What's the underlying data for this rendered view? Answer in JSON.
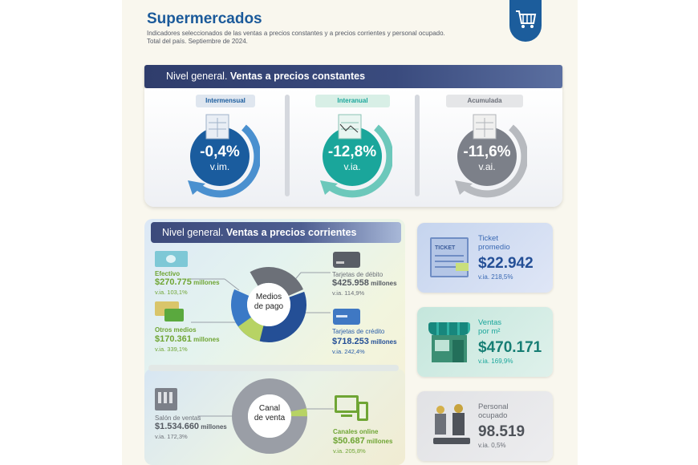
{
  "header": {
    "title": "Supermercados",
    "subtitle_line1": "Indicadores seleccionados de las ventas a precios constantes y a precios corrientes y personal ocupado.",
    "subtitle_line2": "Total del país. Septiembre de 2024.",
    "logo_icon": "shopping-cart-icon"
  },
  "constantes": {
    "title_bold": "Nivel general.",
    "title_rest": " Ventas a precios constantes",
    "gauges": [
      {
        "tag": "Intermensual",
        "value": "-0,4%",
        "unit": "v.im.",
        "color": "#1a5c9e"
      },
      {
        "tag": "Interanual",
        "value": "-12,8%",
        "unit": "v.ia.",
        "color": "#1aa69b"
      },
      {
        "tag": "Acumulada",
        "value": "-11,6%",
        "unit": "v.ai.",
        "color": "#7c8089"
      }
    ]
  },
  "corrientes": {
    "title_plain": "Nivel general.",
    "title_bold": " Ventas a precios corrientes",
    "medios": {
      "center": "Medios\nde pago",
      "efectivo": {
        "label": "Efectivo",
        "value": "$270.775",
        "unit": " millones",
        "via": "v.ia. 103,1%"
      },
      "otros": {
        "label": "Otros medios",
        "value": "$170.361",
        "unit": " millones",
        "via": "v.ia. 339,1%"
      },
      "debito": {
        "label": "Tarjetas de débito",
        "value": "$425.958",
        "unit": " millones",
        "via": "v.ia. 114,9%"
      },
      "credito": {
        "label": "Tarjetas de crédito",
        "value": "$718.253",
        "unit": " millones",
        "via": "v.ia. 242,4%"
      }
    },
    "canal": {
      "center": "Canal\nde venta",
      "salon": {
        "label": "Salón de ventas",
        "value": "$1.534.660",
        "unit": " millones",
        "via": "v.ia. 172,3%"
      },
      "online": {
        "label": "Canales online",
        "value": "$50.687",
        "unit": " millones",
        "via": "v.ia. 205,8%"
      }
    }
  },
  "cards": {
    "ticket": {
      "label_1": "Ticket",
      "label_2": "promedio",
      "value": "$22.942",
      "via": "v.ia. 218,5%",
      "icon_text": "TICKET"
    },
    "ventas_m2": {
      "label_1": "Ventas",
      "label_2": "por m²",
      "value": "$470.171",
      "via": "v.ia. 169,9%"
    },
    "personal": {
      "label_1": "Personal",
      "label_2": "ocupado",
      "value": "98.519",
      "via": "v.ia. 0,5%"
    }
  }
}
